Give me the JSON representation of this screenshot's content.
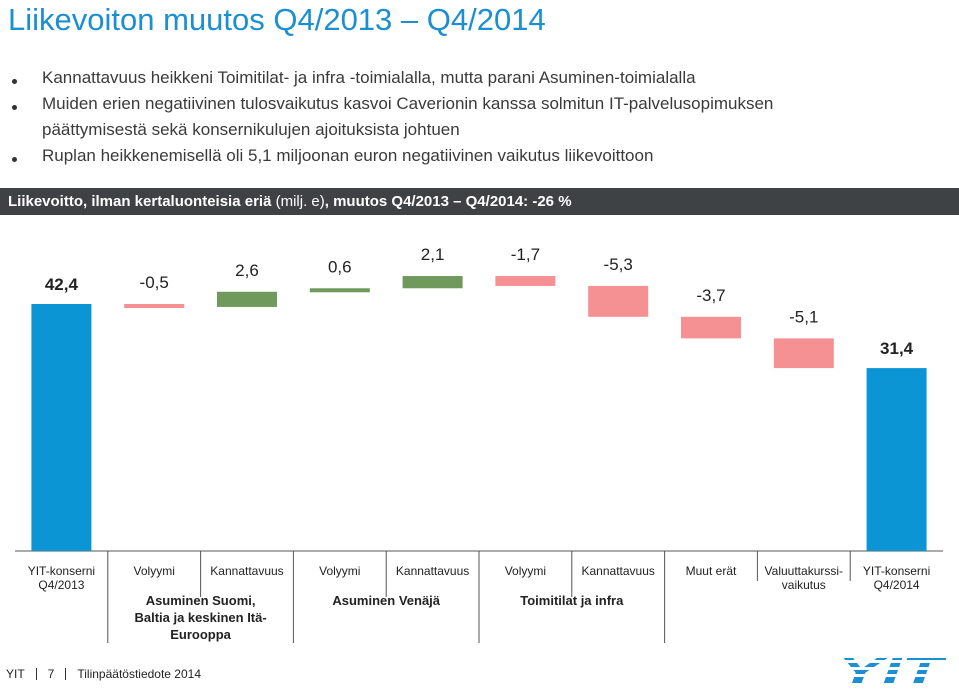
{
  "slide": {
    "title": "Liikevoiton muutos Q4/2013 – Q4/2014",
    "bullets": [
      "Kannattavuus heikkeni Toimitilat- ja infra -toimialalla, mutta parani Asuminen-toimialalla",
      "Muiden erien negatiivinen tulosvaikutus kasvoi Caverionin kanssa solmitun IT-palvelusopimuksen",
      "päättymisestä sekä konsernikulujen ajoituksista johtuen",
      "Ruplan heikkenemisellä oli 5,1 miljoonan euron negatiivinen vaikutus liikevoittoon"
    ],
    "banner": {
      "part1": "Liikevoitto, ilman kertaluonteisia eriä",
      "part2": " (milj. e)",
      "part3": ", muutos Q4/2013 – Q4/2014: -26 %"
    }
  },
  "colors": {
    "title": "#1a8fd1",
    "total": "#0b95d4",
    "positive": "#6f9a5c",
    "negative": "#f59193",
    "banner": "#3f4244"
  },
  "chart_data": {
    "type": "waterfall",
    "title": "Liikevoitto, ilman kertaluonteisia eriä (milj. e), muutos Q4/2013 – Q4/2014: -26 %",
    "units": "milj. e",
    "bars": [
      {
        "kind": "total",
        "value": 42.4,
        "label": "42,4",
        "category": "YIT-konserni Q4/2013"
      },
      {
        "kind": "delta",
        "value": -0.5,
        "label": "-0,5",
        "category": "Volyymi"
      },
      {
        "kind": "delta",
        "value": 2.6,
        "label": "2,6",
        "category": "Kannattavuus"
      },
      {
        "kind": "delta",
        "value": 0.6,
        "label": "0,6",
        "category": "Volyymi"
      },
      {
        "kind": "delta",
        "value": 2.1,
        "label": "2,1",
        "category": "Kannattavuus"
      },
      {
        "kind": "delta",
        "value": -1.7,
        "label": "-1,7",
        "category": "Volyymi"
      },
      {
        "kind": "delta",
        "value": -5.3,
        "label": "-5,3",
        "category": "Kannattavuus"
      },
      {
        "kind": "delta",
        "value": -3.7,
        "label": "-3,7",
        "category": "Muut erät"
      },
      {
        "kind": "delta",
        "value": -5.1,
        "label": "-5,1",
        "category": "Valuuttakurssi-vaikutus"
      },
      {
        "kind": "total",
        "value": 31.4,
        "label": "31,4",
        "category": "YIT-konserni Q4/2014"
      }
    ],
    "category_lines": [
      [
        "YIT-konserni",
        "Q4/2013"
      ],
      [
        "Volyymi"
      ],
      [
        "Kannattavuus"
      ],
      [
        "Volyymi"
      ],
      [
        "Kannattavuus"
      ],
      [
        "Volyymi"
      ],
      [
        "Kannattavuus"
      ],
      [
        "Muut erät"
      ],
      [
        "Valuuttakurssi-",
        "vaikutus"
      ],
      [
        "YIT-konserni",
        "Q4/2014"
      ]
    ],
    "groups": [
      {
        "lines": [
          "Asuminen Suomi,",
          "Baltia ja keskinen Itä-",
          "Eurooppa"
        ],
        "span": [
          1,
          2
        ]
      },
      {
        "lines": [
          "Asuminen Venäjä"
        ],
        "span": [
          3,
          4
        ]
      },
      {
        "lines": [
          "Toimitilat ja infra"
        ],
        "span": [
          5,
          6
        ]
      }
    ]
  },
  "footer": {
    "brand": "YIT",
    "page": "7",
    "doc": "Tilinpäätöstiedote 2014"
  },
  "logo": {
    "text": "YIT"
  }
}
